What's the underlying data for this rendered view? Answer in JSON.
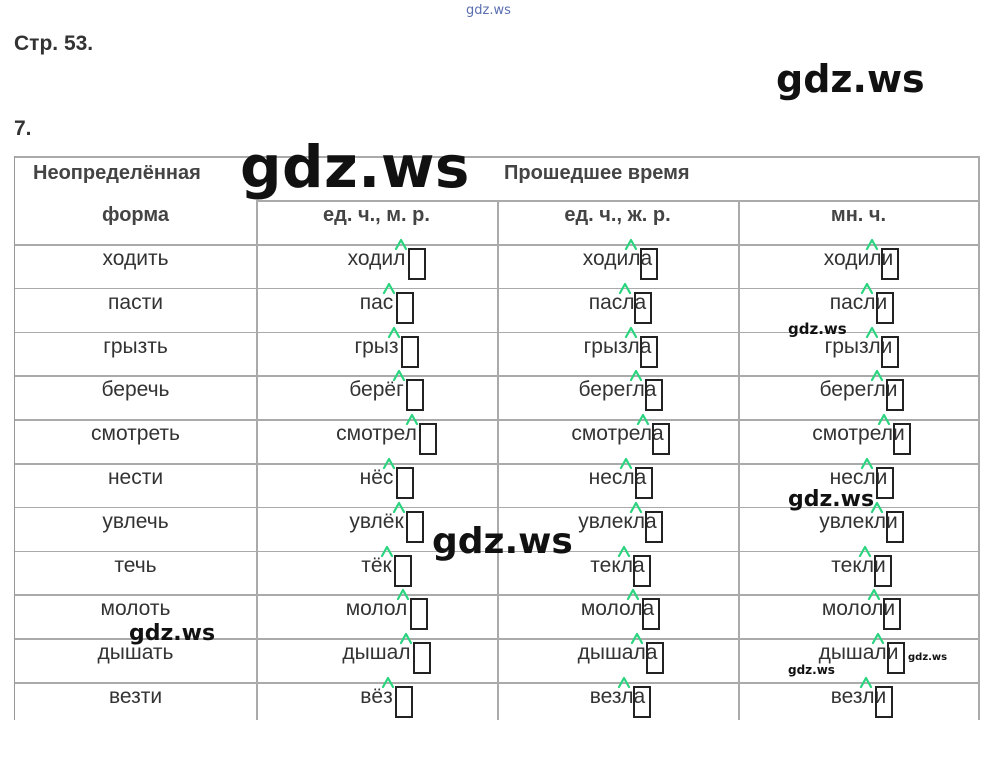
{
  "watermarks": {
    "top": "gdz.ws",
    "big": "gdz.ws",
    "xl": "gdz.ws",
    "mid": "gdz.ws",
    "s1": "gdz.ws",
    "s2": "gdz.ws",
    "s3": "gdz.ws",
    "s4": "gdz.ws",
    "s5": "gdz.ws"
  },
  "page_ref": "Стр. 53.",
  "exercise_number": "7.",
  "table": {
    "header_infinitive_line1": "Неопределённая",
    "header_infinitive_line2": "форма",
    "header_past": "Прошедшее время",
    "header_m": "ед. ч., м. р.",
    "header_f": "ед. ч., ж. р.",
    "header_pl": "мн. ч.",
    "rows": [
      {
        "inf": "ходить",
        "m": "ходил",
        "f": "ходила",
        "pl": "ходили"
      },
      {
        "inf": "пасти",
        "m": "пас",
        "f": "пасла",
        "pl": "пасли"
      },
      {
        "inf": "грызть",
        "m": "грыз",
        "f": "грызла",
        "pl": "грызли"
      },
      {
        "inf": "беречь",
        "m": "берёг",
        "f": "берегла",
        "pl": "берегли"
      },
      {
        "inf": "смотреть",
        "m": "смотрел",
        "f": "смотрела",
        "pl": "смотрели"
      },
      {
        "inf": "нести",
        "m": "нёс",
        "f": "несла",
        "pl": "несли"
      },
      {
        "inf": "увлечь",
        "m": "увлёк",
        "f": "увлекла",
        "pl": "увлекли"
      },
      {
        "inf": "течь",
        "m": "тёк",
        "f": "текла",
        "pl": "текли"
      },
      {
        "inf": "молоть",
        "m": "молол",
        "f": "молола",
        "pl": "мололи"
      },
      {
        "inf": "дышать",
        "m": "дышал",
        "f": "дышала",
        "pl": "дышали"
      },
      {
        "inf": "везти",
        "m": "вёз",
        "f": "везла",
        "pl": "везли"
      }
    ]
  },
  "colors": {
    "caret": "#2bd47f",
    "ending_box": "#222222",
    "grid": "#aaaaaa"
  },
  "icons": {
    "suffix_mark": "caret-up-icon",
    "ending_mark": "ending-box-icon"
  }
}
